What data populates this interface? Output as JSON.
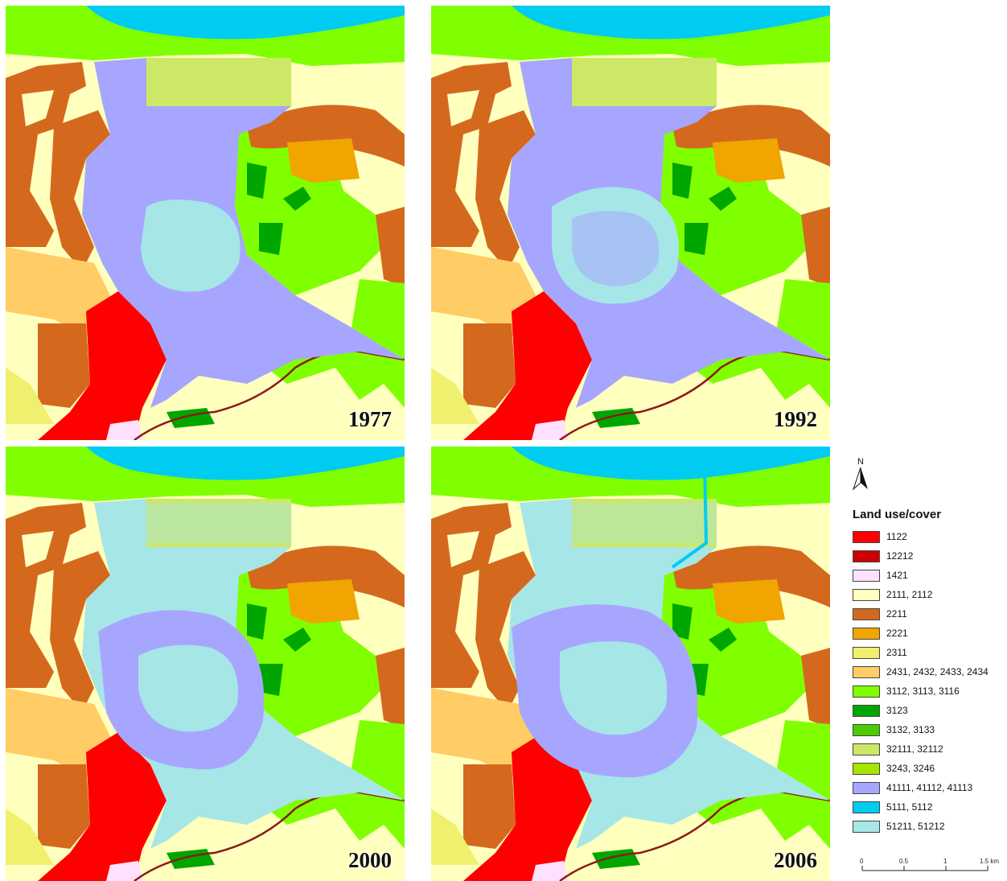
{
  "panels": [
    {
      "year": "1977"
    },
    {
      "year": "1992"
    },
    {
      "year": "2000"
    },
    {
      "year": "2006"
    }
  ],
  "north_arrow": {
    "label": "N"
  },
  "legend": {
    "title": "Land use/cover",
    "items": [
      {
        "label": "1122",
        "color": "#ff0000"
      },
      {
        "label": "12212",
        "color": "#cc0000"
      },
      {
        "label": "1421",
        "color": "#ffe0ff"
      },
      {
        "label": "2111, 2112",
        "color": "#ffffbe"
      },
      {
        "label": "2211",
        "color": "#d4691e"
      },
      {
        "label": "2221",
        "color": "#f0a500"
      },
      {
        "label": "2311",
        "color": "#f0f06e"
      },
      {
        "label": "2431, 2432, 2433, 2434",
        "color": "#ffcc66"
      },
      {
        "label": "3112, 3113, 3116",
        "color": "#80ff00"
      },
      {
        "label": "3123",
        "color": "#00a600"
      },
      {
        "label": "3132, 3133",
        "color": "#4ccc00"
      },
      {
        "label": "32111, 32112",
        "color": "#cce866"
      },
      {
        "label": "3243, 3246",
        "color": "#a6e600"
      },
      {
        "label": "41111, 41112, 41113",
        "color": "#a6a6ff"
      },
      {
        "label": "5111, 5112",
        "color": "#00ccf2"
      },
      {
        "label": "51211, 51212",
        "color": "#a6e6e6"
      }
    ]
  },
  "scale_bar": {
    "ticks": [
      "0",
      "0.5",
      "1",
      "1.5 km"
    ]
  }
}
